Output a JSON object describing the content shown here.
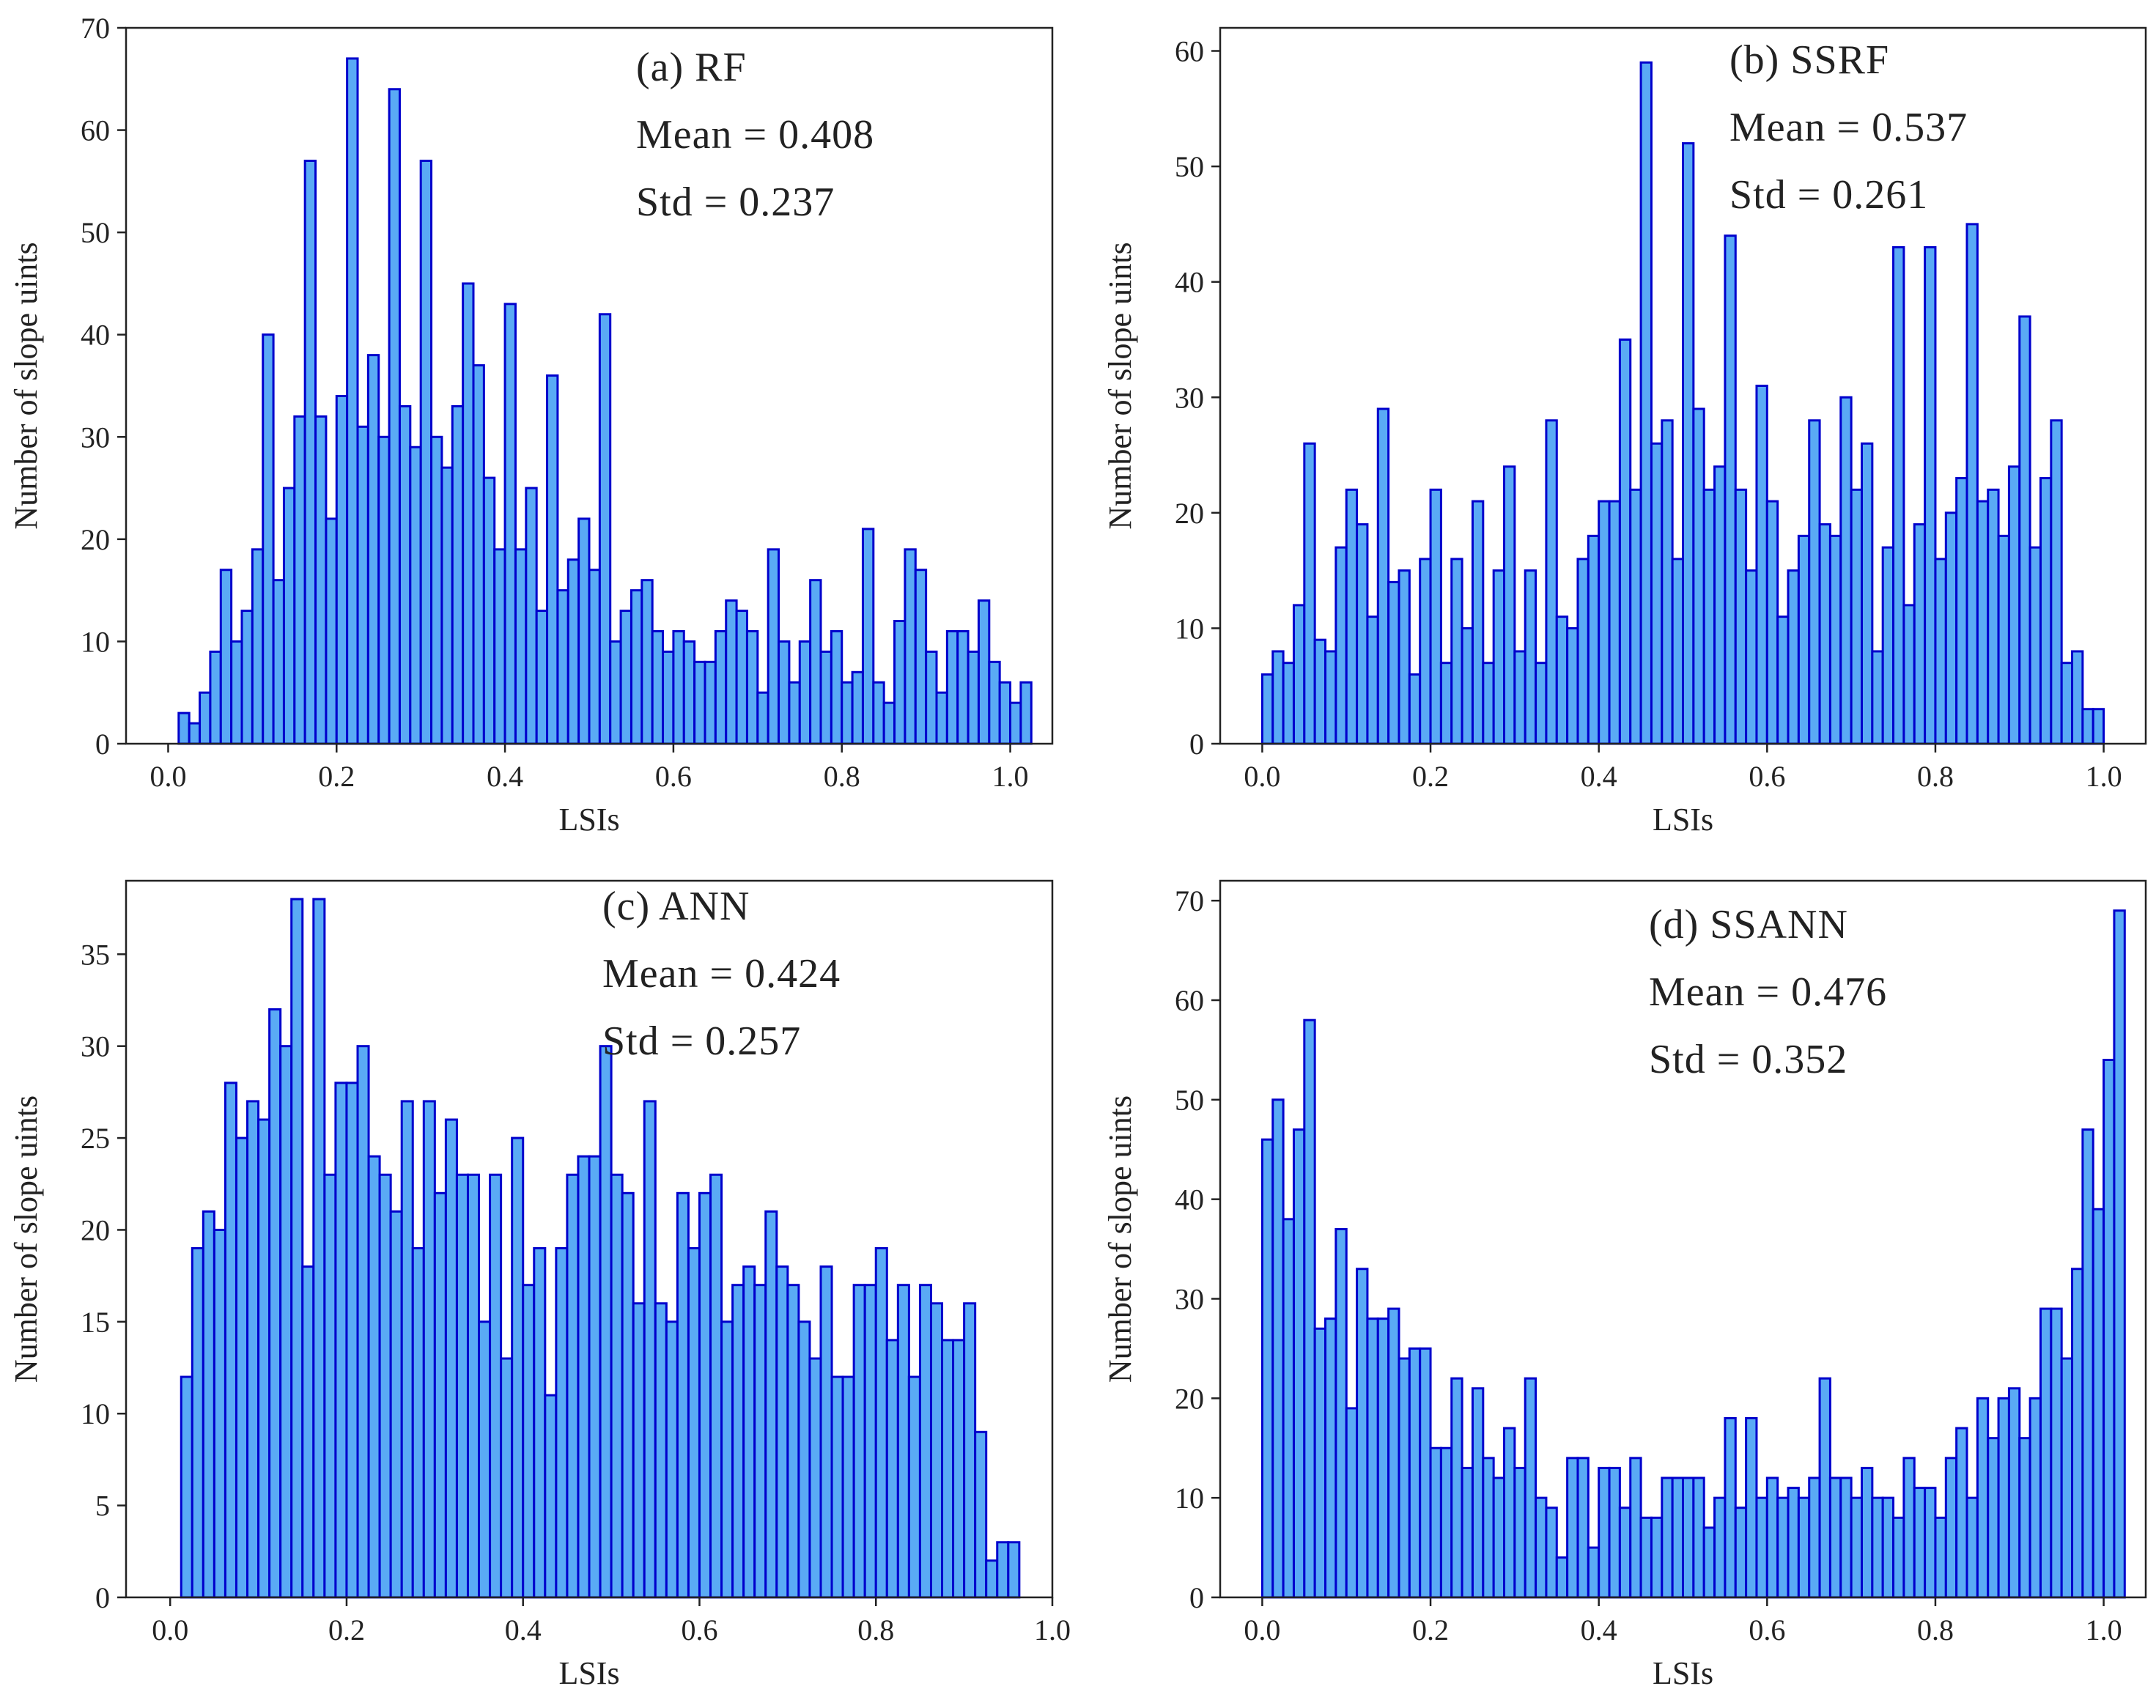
{
  "figure": {
    "colors": {
      "bar_fill": "#5aaaf5",
      "bar_edge": "#0000cc",
      "axis": "#222222"
    }
  },
  "chart_data": [
    {
      "id": "a",
      "type": "bar",
      "histogram": true,
      "annotation": {
        "label": "(a) RF",
        "mean": "Mean = 0.408",
        "std": "Std = 0.237"
      },
      "xlabel": "LSIs",
      "ylabel": "Number of slope uints",
      "xlim": [
        -0.05,
        1.05
      ],
      "ylim": [
        0,
        70
      ],
      "xticks": [
        0.0,
        0.2,
        0.4,
        0.6,
        0.8,
        1.0
      ],
      "xtick_labels": [
        "0.0",
        "0.2",
        "0.4",
        "0.6",
        "0.8",
        "1.0"
      ],
      "yticks": [
        0,
        10,
        20,
        30,
        40,
        50,
        60,
        70
      ],
      "ytick_labels": [
        "0",
        "10",
        "20",
        "30",
        "40",
        "50",
        "60",
        "70"
      ],
      "bin_start": 0.0,
      "bin_width": 0.0125,
      "values": [
        0,
        3,
        2,
        5,
        9,
        17,
        10,
        13,
        19,
        40,
        16,
        25,
        32,
        57,
        32,
        22,
        34,
        67,
        31,
        38,
        30,
        64,
        33,
        29,
        57,
        30,
        27,
        33,
        45,
        37,
        26,
        19,
        43,
        19,
        25,
        13,
        36,
        15,
        18,
        22,
        17,
        42,
        10,
        13,
        15,
        16,
        11,
        9,
        11,
        10,
        8,
        8,
        11,
        14,
        13,
        11,
        5,
        19,
        10,
        6,
        10,
        16,
        9,
        11,
        6,
        7,
        21,
        6,
        4,
        12,
        19,
        17,
        9,
        5,
        11,
        11,
        9,
        14,
        8,
        6,
        4,
        6
      ]
    },
    {
      "id": "b",
      "type": "bar",
      "histogram": true,
      "annotation": {
        "label": "(b) SSRF",
        "mean": "Mean = 0.537",
        "std": "Std = 0.261"
      },
      "xlabel": "LSIs",
      "ylabel": "Number of slope uints",
      "xlim": [
        -0.05,
        1.05
      ],
      "ylim": [
        0,
        62
      ],
      "xticks": [
        0.0,
        0.2,
        0.4,
        0.6,
        0.8,
        1.0
      ],
      "xtick_labels": [
        "0.0",
        "0.2",
        "0.4",
        "0.6",
        "0.8",
        "1.0"
      ],
      "yticks": [
        0,
        10,
        20,
        30,
        40,
        50,
        60
      ],
      "ytick_labels": [
        "0",
        "10",
        "20",
        "30",
        "40",
        "50",
        "60"
      ],
      "bin_start": 0.0,
      "bin_width": 0.0125,
      "values": [
        6,
        8,
        7,
        12,
        26,
        9,
        8,
        17,
        22,
        19,
        11,
        29,
        14,
        15,
        6,
        16,
        22,
        7,
        16,
        10,
        21,
        7,
        15,
        24,
        8,
        15,
        7,
        28,
        11,
        10,
        16,
        18,
        21,
        21,
        35,
        22,
        59,
        26,
        28,
        16,
        52,
        29,
        22,
        24,
        44,
        22,
        15,
        31,
        21,
        11,
        15,
        18,
        28,
        19,
        18,
        30,
        22,
        26,
        8,
        17,
        43,
        12,
        19,
        43,
        16,
        20,
        23,
        45,
        21,
        22,
        18,
        24,
        37,
        17,
        23,
        28,
        7,
        8,
        3,
        3
      ]
    },
    {
      "id": "c",
      "type": "bar",
      "histogram": true,
      "annotation": {
        "label": "(c) ANN",
        "mean": "Mean = 0.424",
        "std": "Std = 0.257"
      },
      "xlabel": "LSIs",
      "ylabel": "Number of slope uints",
      "xlim": [
        -0.05,
        1.0
      ],
      "ylim": [
        0,
        39
      ],
      "xticks": [
        0.0,
        0.2,
        0.4,
        0.6,
        0.8,
        1.0
      ],
      "xtick_labels": [
        "0.0",
        "0.2",
        "0.4",
        "0.6",
        "0.8",
        "1.0"
      ],
      "yticks": [
        0,
        5,
        10,
        15,
        20,
        25,
        30,
        35
      ],
      "ytick_labels": [
        "0",
        "5",
        "10",
        "15",
        "20",
        "25",
        "30",
        "35"
      ],
      "bin_start": 0.0,
      "bin_width": 0.0125,
      "values": [
        0,
        12,
        19,
        21,
        20,
        28,
        25,
        27,
        26,
        32,
        30,
        38,
        18,
        38,
        23,
        28,
        28,
        30,
        24,
        23,
        21,
        27,
        19,
        27,
        22,
        26,
        23,
        23,
        15,
        23,
        13,
        25,
        17,
        19,
        11,
        19,
        23,
        24,
        24,
        30,
        23,
        22,
        16,
        27,
        16,
        15,
        22,
        19,
        22,
        23,
        15,
        17,
        18,
        17,
        21,
        18,
        17,
        15,
        13,
        18,
        12,
        12,
        17,
        17,
        19,
        14,
        17,
        12,
        17,
        16,
        14,
        14,
        16,
        9,
        2,
        3,
        3
      ]
    },
    {
      "id": "d",
      "type": "bar",
      "histogram": true,
      "annotation": {
        "label": "(d) SSANN",
        "mean": "Mean = 0.476",
        "std": "Std = 0.352"
      },
      "xlabel": "LSIs",
      "ylabel": "Number of slope uints",
      "xlim": [
        -0.05,
        1.05
      ],
      "ylim": [
        0,
        72
      ],
      "xticks": [
        0.0,
        0.2,
        0.4,
        0.6,
        0.8,
        1.0
      ],
      "xtick_labels": [
        "0.0",
        "0.2",
        "0.4",
        "0.6",
        "0.8",
        "1.0"
      ],
      "yticks": [
        0,
        10,
        20,
        30,
        40,
        50,
        60,
        70
      ],
      "ytick_labels": [
        "0",
        "10",
        "20",
        "30",
        "40",
        "50",
        "60",
        "70"
      ],
      "bin_start": 0.0,
      "bin_width": 0.0125,
      "values": [
        46,
        50,
        38,
        47,
        58,
        27,
        28,
        37,
        19,
        33,
        28,
        28,
        29,
        24,
        25,
        25,
        15,
        15,
        22,
        13,
        21,
        14,
        12,
        17,
        13,
        22,
        10,
        9,
        4,
        14,
        14,
        5,
        13,
        13,
        9,
        14,
        8,
        8,
        12,
        12,
        12,
        12,
        7,
        10,
        18,
        9,
        18,
        10,
        12,
        10,
        11,
        10,
        12,
        22,
        12,
        12,
        10,
        13,
        10,
        10,
        8,
        14,
        11,
        11,
        8,
        14,
        17,
        10,
        20,
        16,
        20,
        21,
        16,
        20,
        29,
        29,
        24,
        33,
        47,
        39,
        54,
        69
      ]
    }
  ]
}
